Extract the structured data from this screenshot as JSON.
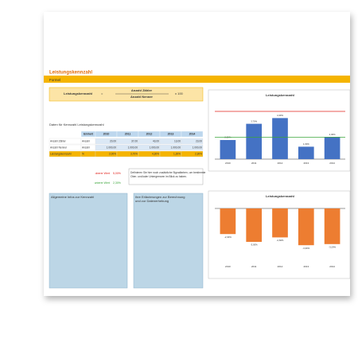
{
  "header": {
    "title": "Leistungskennzahl",
    "formula_heading": "Formel"
  },
  "formula": {
    "name": "Leistungskennzahl",
    "equals": "=",
    "numerator": "Anzahl Zähler",
    "denominator": "Anzahl Nenner",
    "factor": "x 100"
  },
  "table": {
    "title": "Daten für Kennzahl Leistungskennzahl",
    "header": [
      "Einheit",
      "2010",
      "2011",
      "2012",
      "2013",
      "2014"
    ],
    "rows": [
      [
        "Anzahl Zähler",
        "Anzahl",
        "20,00",
        "37,00",
        "43,00",
        "13,00",
        "23,00"
      ],
      [
        "Anzahl Nenner",
        "Anzahl",
        "1.000,00",
        "1.000,00",
        "1.000,00",
        "1.000,00",
        "1.000,00"
      ],
      [
        "Leistungskennzahl",
        "%",
        "2,00%",
        "3,70%",
        "4,30%",
        "1,30%",
        "2,30%"
      ]
    ]
  },
  "signals": [
    {
      "label": "oberer Wert",
      "value": 5,
      "value_label": "5,00%",
      "color": "#e0201b"
    },
    {
      "label": "unterer Wert",
      "value": 2.3,
      "value_label": "2,30%",
      "color": "#3aa53a"
    }
  ],
  "signal_note": "Definieren Sie hier noch zusätzliche Signalfarben, um bestimmte Ober- und/oder Untergrenzen im Blick zu haben.",
  "notes": [
    "Allgemeine Infos zur Kennzahl",
    "Ihre Erläuterungen zur Berechnung und zur Datenerhebung"
  ],
  "charts": [
    {
      "type": "bar",
      "title": "Leistungskennzahl",
      "categories": [
        "2010",
        "2011",
        "2012",
        "2013",
        "2014"
      ],
      "values": [
        2.0,
        3.7,
        4.3,
        1.3,
        2.3
      ],
      "value_labels": [
        "2,00%",
        "3,70%",
        "4,30%",
        "1,30%",
        "2,30%"
      ],
      "color": "#4472c4"
    },
    {
      "type": "bar",
      "title": "Leistungskennzahl",
      "categories": [
        "2010",
        "2011",
        "2012",
        "2013",
        "2014"
      ],
      "values": [
        -2.3,
        -3.0,
        -2.6,
        -3.3,
        -3.2
      ],
      "value_labels": [
        "-2,30%",
        "-3,00%",
        "-2,60%",
        "-3,30%",
        "-3,20%"
      ],
      "color": "#ed7d31"
    }
  ]
}
